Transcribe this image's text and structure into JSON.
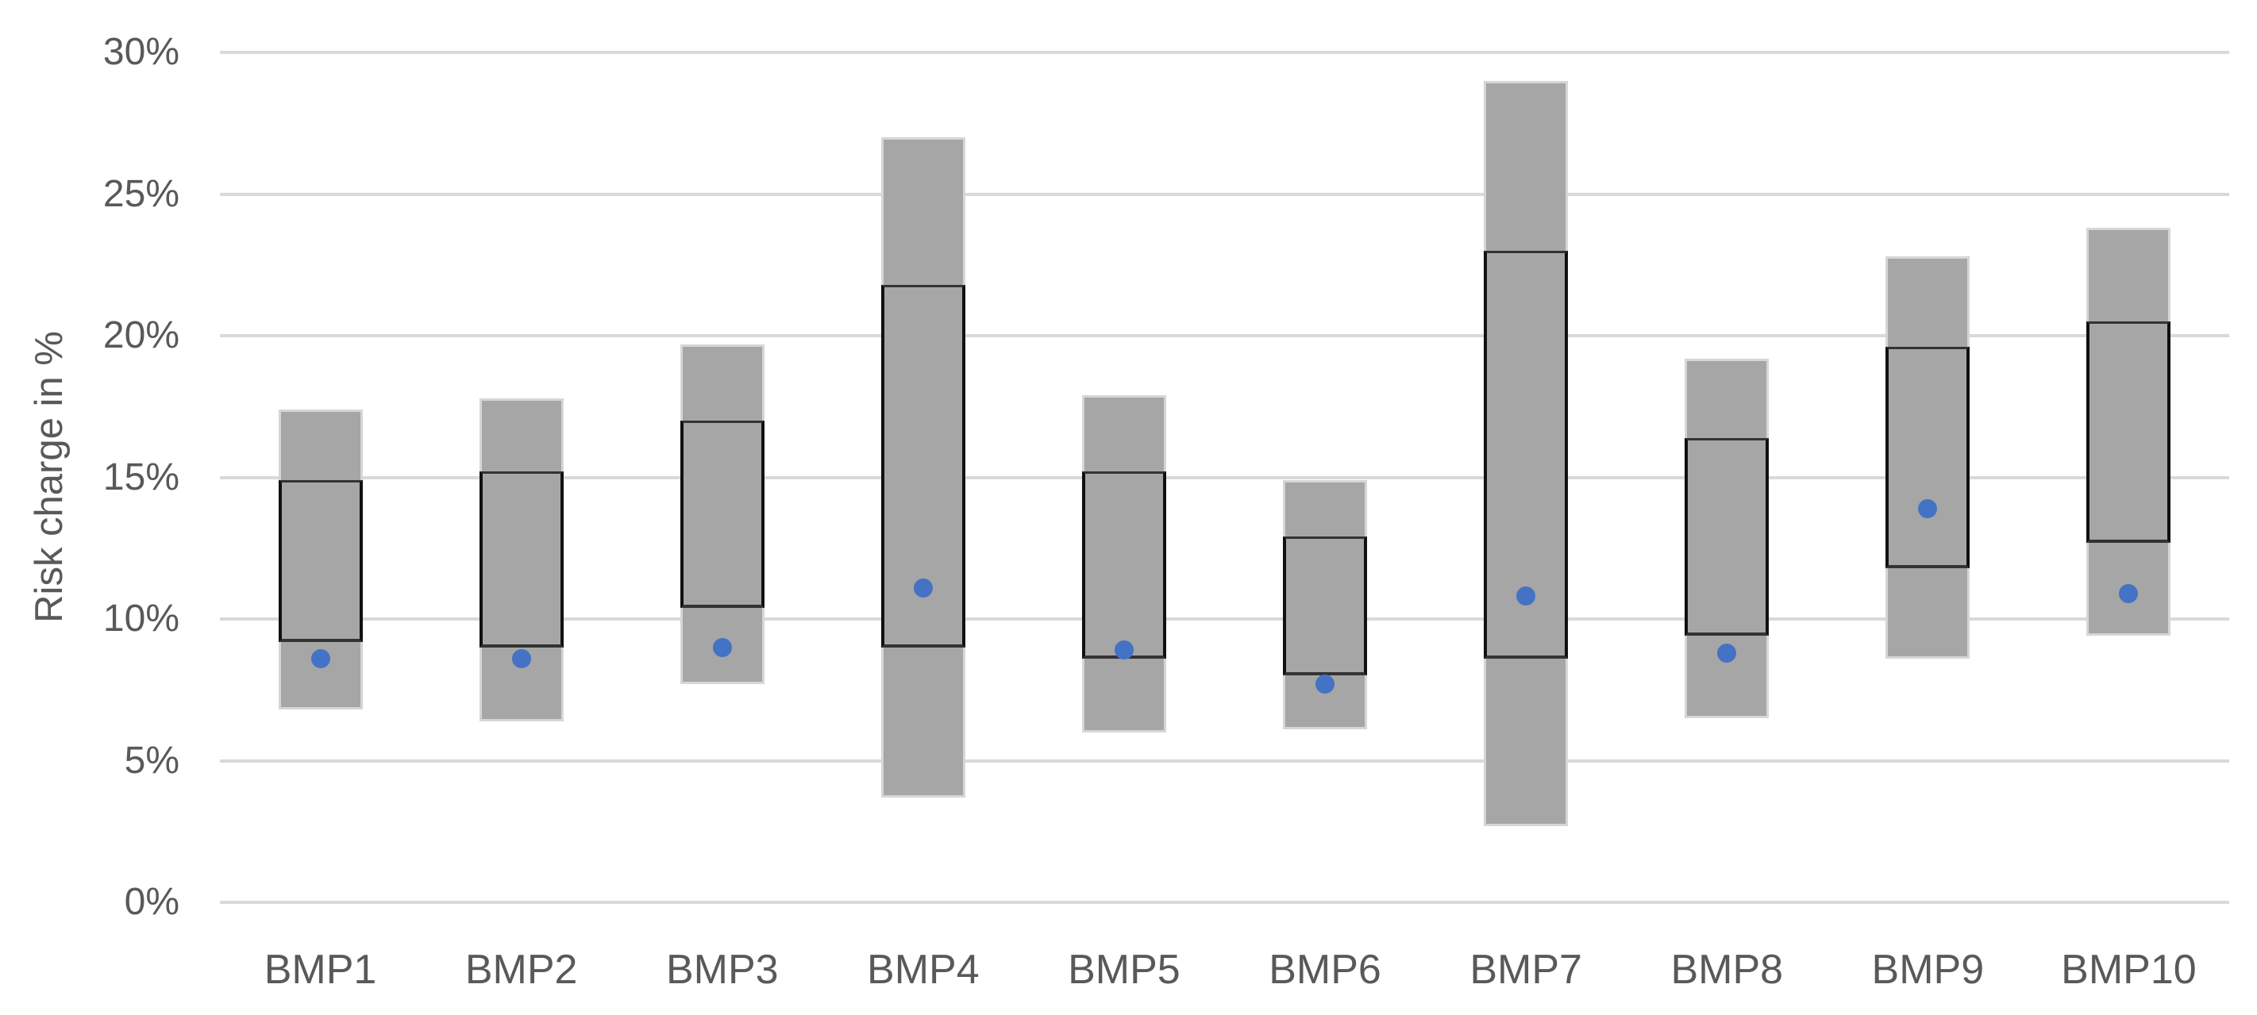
{
  "chart_data": {
    "type": "boxplot",
    "subtype": "floating-range-bars-with-box-and-mean-dot",
    "title": "",
    "xlabel": "",
    "ylabel": "Risk charge in %",
    "ylim": [
      0,
      30
    ],
    "ytick_step": 5,
    "yticks": [
      "0%",
      "5%",
      "10%",
      "15%",
      "20%",
      "25%",
      "30%"
    ],
    "grid": true,
    "legend": false,
    "categories": [
      "BMP1",
      "BMP2",
      "BMP3",
      "BMP4",
      "BMP5",
      "BMP6",
      "BMP7",
      "BMP8",
      "BMP9",
      "BMP10"
    ],
    "series": [
      {
        "name": "range_min",
        "values": [
          6.8,
          6.4,
          7.7,
          3.7,
          6.0,
          6.1,
          2.7,
          6.5,
          8.6,
          9.4
        ]
      },
      {
        "name": "range_max",
        "values": [
          17.4,
          17.8,
          19.7,
          27.0,
          17.9,
          14.9,
          29.0,
          19.2,
          22.8,
          23.8
        ]
      },
      {
        "name": "box_low",
        "values": [
          9.2,
          9.0,
          10.4,
          9.0,
          8.6,
          8.0,
          8.6,
          9.4,
          11.8,
          12.7
        ]
      },
      {
        "name": "box_high",
        "values": [
          14.9,
          15.2,
          17.0,
          21.8,
          15.2,
          12.9,
          23.0,
          16.4,
          19.6,
          20.5
        ]
      },
      {
        "name": "mean_dot",
        "values": [
          8.6,
          8.6,
          9.0,
          11.1,
          8.9,
          7.7,
          10.8,
          8.8,
          13.9,
          10.9
        ]
      }
    ],
    "colors": {
      "bar_fill": "#a6a6a6",
      "bar_edge": "#d6d6d6",
      "box_border": "#111111",
      "dot": "#4472c4",
      "gridline": "#d9d9d9",
      "text": "#595959",
      "background": "#ffffff"
    }
  }
}
